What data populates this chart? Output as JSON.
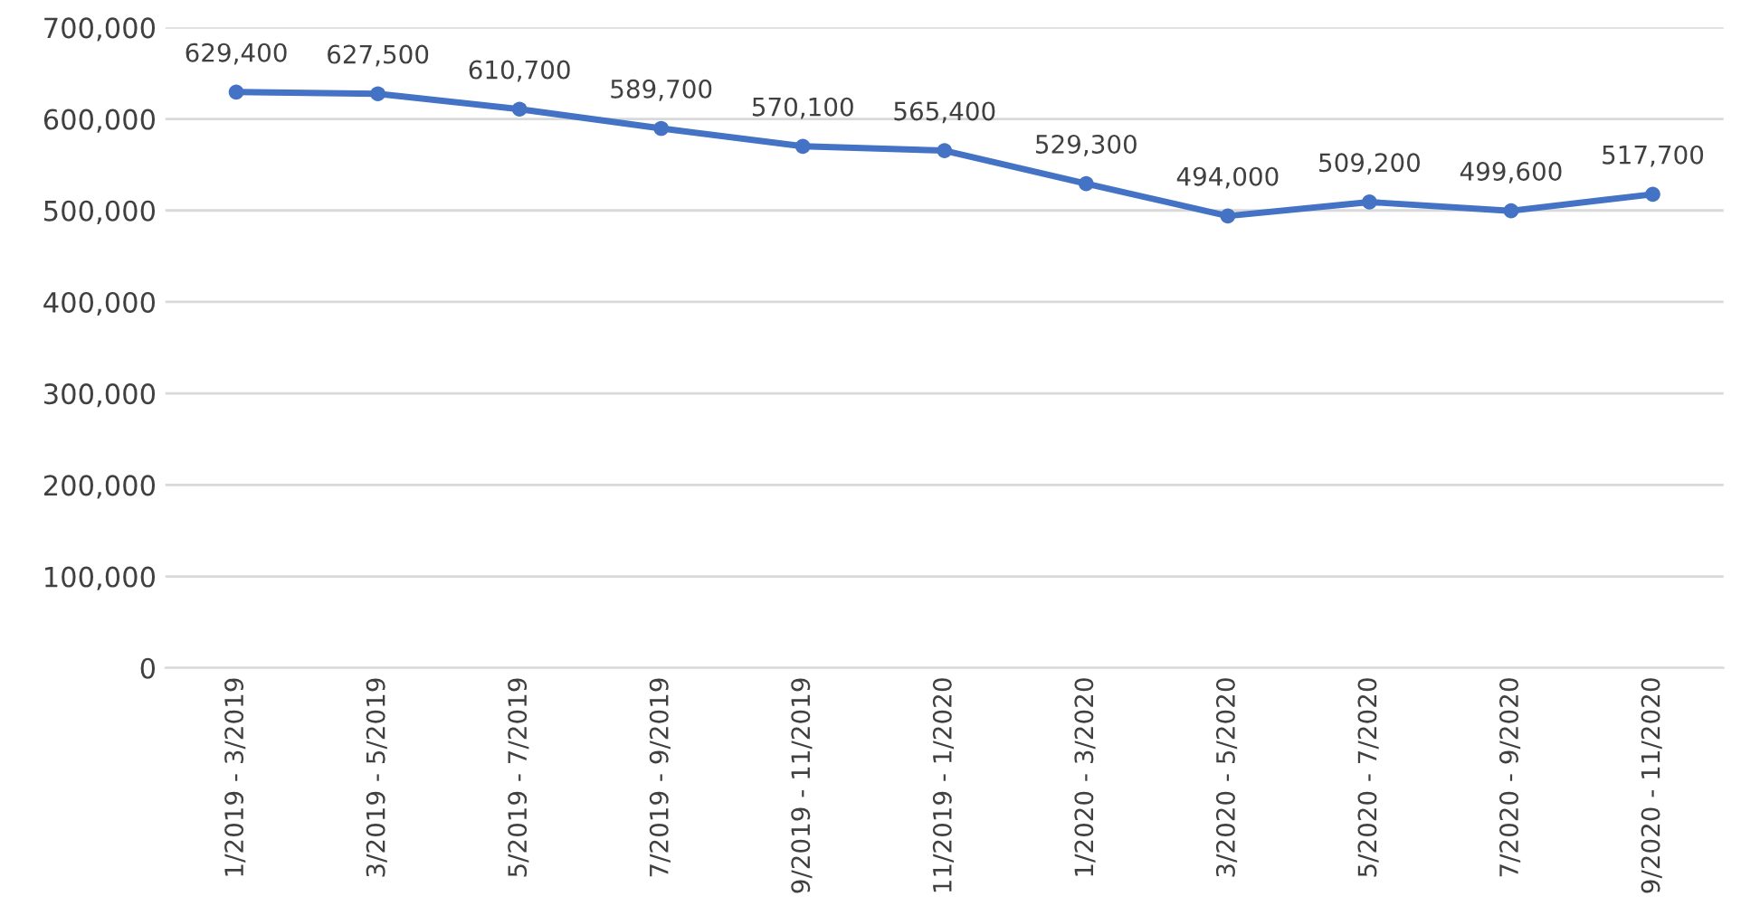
{
  "chart_data": {
    "type": "line",
    "categories": [
      "1/2019 - 3/2019",
      "3/2019 - 5/2019",
      "5/2019 - 7/2019",
      "7/2019 - 9/2019",
      "9/2019 - 11/2019",
      "11/2019 - 1/2020",
      "1/2020 - 3/2020",
      "3/2020 - 5/2020",
      "5/2020 - 7/2020",
      "7/2020 - 9/2020",
      "9/2020 - 11/2020"
    ],
    "series": [
      {
        "color": "#4472c4",
        "values": [
          629400,
          627500,
          610700,
          589700,
          570100,
          565400,
          529300,
          494000,
          509200,
          499600,
          517700
        ],
        "value_labels": [
          "629,400",
          "627,500",
          "610,700",
          "589,700",
          "570,100",
          "565,400",
          "529,300",
          "494,000",
          "509,200",
          "499,600",
          "517,700"
        ]
      }
    ],
    "ylim": [
      0,
      700000
    ],
    "yticks": [
      {
        "value": 0,
        "label": "0"
      },
      {
        "value": 100000,
        "label": "100,000"
      },
      {
        "value": 200000,
        "label": "200,000"
      },
      {
        "value": 300000,
        "label": "300,000"
      },
      {
        "value": 400000,
        "label": "400,000"
      },
      {
        "value": 500000,
        "label": "500,000"
      },
      {
        "value": 600000,
        "label": "600,000"
      },
      {
        "value": 700000,
        "label": "700,000"
      }
    ],
    "grid": "y",
    "marker": "circle",
    "line_style": "solid",
    "legend": false
  }
}
